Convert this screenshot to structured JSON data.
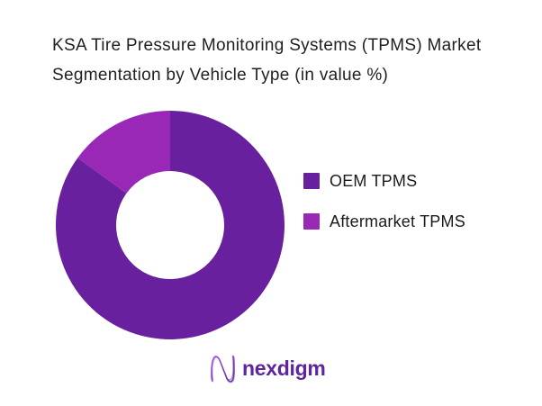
{
  "title": "KSA Tire Pressure Monitoring Systems (TPMS) Market Segmentation by Vehicle Type (in value %)",
  "chart_data": {
    "type": "pie",
    "subtype": "donut",
    "title": "KSA Tire Pressure Monitoring Systems (TPMS) Market Segmentation by Vehicle Type (in value %)",
    "labels": [
      "OEM TPMS",
      "Aftermarket TPMS"
    ],
    "values": [
      85,
      15
    ],
    "unit": "value %",
    "colors": [
      "#68209E",
      "#9A28B6"
    ],
    "start_angle_deg": 0,
    "clockwise": true,
    "inner_radius_ratio": 0.47,
    "legend_position": "right",
    "data_labels_shown": false
  },
  "footer": {
    "brand": "nexdigm",
    "brand_color": "#5F249F"
  }
}
